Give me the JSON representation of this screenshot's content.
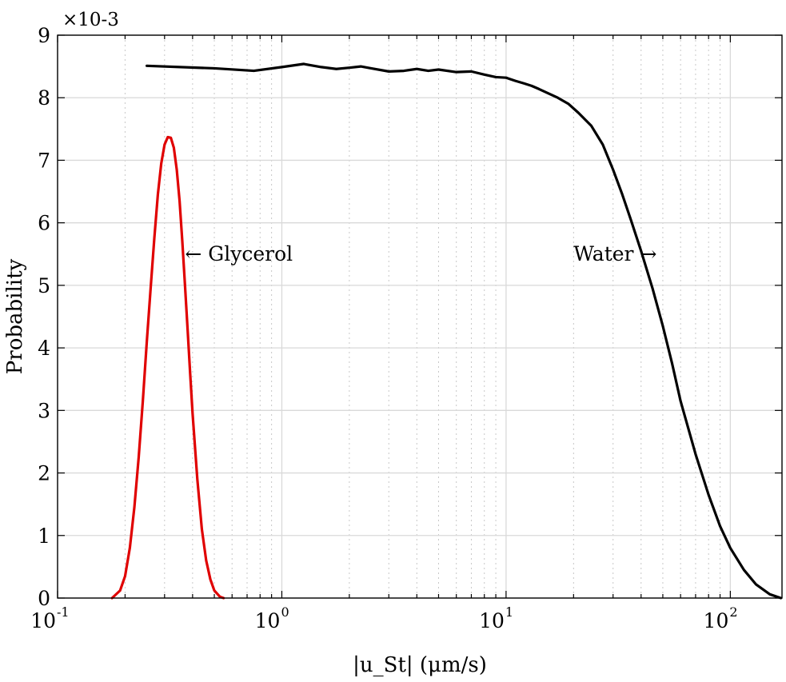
{
  "chart_data": {
    "type": "line",
    "xscale": "log",
    "xlim": [
      0.1,
      170
    ],
    "ylim": [
      0,
      9
    ],
    "xlabel": "|u_St| (μm/s)",
    "ylabel": "Probability",
    "y_multiplier": "×10-3",
    "x_ticks": [
      {
        "base": "10",
        "exp": "-1",
        "value": 0.1
      },
      {
        "base": "10",
        "exp": "0",
        "value": 1
      },
      {
        "base": "10",
        "exp": "1",
        "value": 10
      },
      {
        "base": "10",
        "exp": "2",
        "value": 100
      }
    ],
    "y_ticks": [
      "0",
      "1",
      "2",
      "3",
      "4",
      "5",
      "6",
      "7",
      "8",
      "9"
    ],
    "grid": true,
    "series": [
      {
        "name": "Glycerol",
        "color": "#e00000",
        "points": [
          [
            0.175,
            0.0
          ],
          [
            0.19,
            0.12
          ],
          [
            0.2,
            0.35
          ],
          [
            0.21,
            0.8
          ],
          [
            0.22,
            1.45
          ],
          [
            0.23,
            2.25
          ],
          [
            0.24,
            3.15
          ],
          [
            0.25,
            4.1
          ],
          [
            0.26,
            4.95
          ],
          [
            0.27,
            5.75
          ],
          [
            0.28,
            6.45
          ],
          [
            0.29,
            6.95
          ],
          [
            0.3,
            7.25
          ],
          [
            0.31,
            7.37
          ],
          [
            0.32,
            7.36
          ],
          [
            0.33,
            7.2
          ],
          [
            0.34,
            6.85
          ],
          [
            0.35,
            6.35
          ],
          [
            0.36,
            5.7
          ],
          [
            0.37,
            5.0
          ],
          [
            0.38,
            4.3
          ],
          [
            0.39,
            3.6
          ],
          [
            0.4,
            2.95
          ],
          [
            0.42,
            1.9
          ],
          [
            0.44,
            1.1
          ],
          [
            0.46,
            0.6
          ],
          [
            0.48,
            0.3
          ],
          [
            0.5,
            0.12
          ],
          [
            0.53,
            0.02
          ],
          [
            0.55,
            0.0
          ]
        ]
      },
      {
        "name": "Water",
        "color": "#000000",
        "points": [
          [
            0.25,
            8.51
          ],
          [
            0.5,
            8.47
          ],
          [
            0.75,
            8.43
          ],
          [
            1.0,
            8.49
          ],
          [
            1.25,
            8.54
          ],
          [
            1.5,
            8.49
          ],
          [
            1.75,
            8.46
          ],
          [
            2.0,
            8.48
          ],
          [
            2.25,
            8.5
          ],
          [
            2.5,
            8.47
          ],
          [
            3.0,
            8.42
          ],
          [
            3.5,
            8.43
          ],
          [
            4.0,
            8.46
          ],
          [
            4.5,
            8.43
          ],
          [
            5.0,
            8.45
          ],
          [
            6.0,
            8.41
          ],
          [
            7.0,
            8.42
          ],
          [
            8.0,
            8.37
          ],
          [
            9.0,
            8.33
          ],
          [
            10.0,
            8.32
          ],
          [
            11.0,
            8.27
          ],
          [
            12.0,
            8.23
          ],
          [
            13.0,
            8.19
          ],
          [
            14.0,
            8.14
          ],
          [
            15.0,
            8.09
          ],
          [
            17.0,
            8.0
          ],
          [
            19.0,
            7.9
          ],
          [
            21.0,
            7.76
          ],
          [
            24.0,
            7.55
          ],
          [
            27.0,
            7.25
          ],
          [
            30.0,
            6.85
          ],
          [
            33.0,
            6.45
          ],
          [
            36.0,
            6.05
          ],
          [
            40.0,
            5.55
          ],
          [
            45.0,
            4.95
          ],
          [
            50.0,
            4.35
          ],
          [
            55.0,
            3.75
          ],
          [
            60.0,
            3.15
          ],
          [
            70.0,
            2.3
          ],
          [
            80.0,
            1.65
          ],
          [
            90.0,
            1.15
          ],
          [
            100.0,
            0.8
          ],
          [
            115.0,
            0.45
          ],
          [
            130.0,
            0.22
          ],
          [
            150.0,
            0.06
          ],
          [
            168.0,
            0.0
          ]
        ]
      }
    ],
    "annotations": [
      {
        "text": "← Glycerol",
        "x": 0.37,
        "y": 5.5,
        "anchor": "start"
      },
      {
        "text": "Water →",
        "x": 47,
        "y": 5.5,
        "anchor": "end"
      }
    ]
  }
}
